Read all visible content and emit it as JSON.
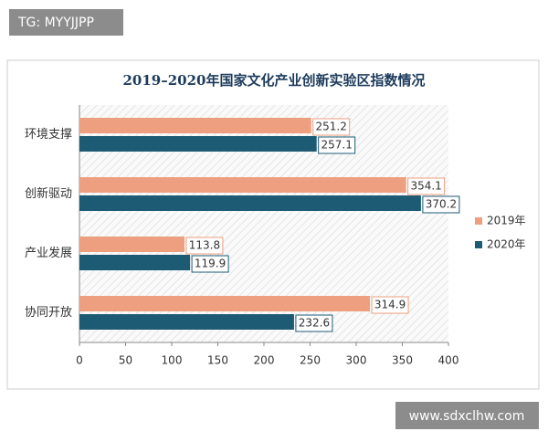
{
  "chart_data": {
    "type": "bar",
    "orientation": "horizontal",
    "title": "2019–2020年国家文化产业创新实验区指数情况",
    "categories": [
      "环境支撑",
      "创新驱动",
      "产业发展",
      "协同开放"
    ],
    "series": [
      {
        "name": "2019年",
        "color": "#ee9f7f",
        "values": [
          251.2,
          354.1,
          113.8,
          314.9
        ]
      },
      {
        "name": "2020年",
        "color": "#1d5b75",
        "values": [
          257.1,
          370.2,
          119.9,
          232.6
        ]
      }
    ],
    "xlim": [
      0,
      400
    ],
    "xticks": [
      0,
      50,
      100,
      150,
      200,
      250,
      300,
      350,
      400
    ],
    "grid": false,
    "legend": "right"
  },
  "watermarks": [
    "TG: MYYJJPP",
    "www.sdxclhw.com"
  ]
}
